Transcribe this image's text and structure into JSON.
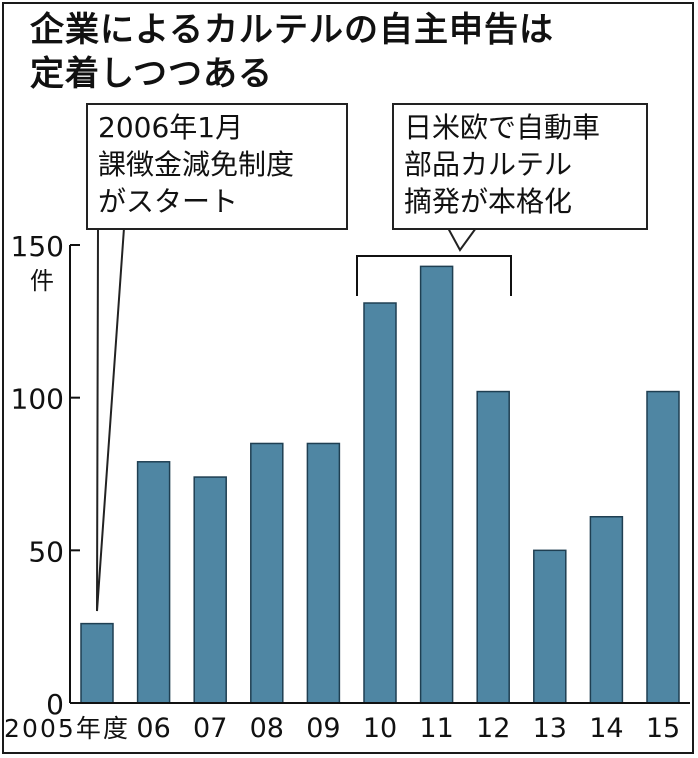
{
  "header": {
    "title_line1": "企業によるカルテルの自主申告は",
    "title_line2": "定着しつつある"
  },
  "annotations": {
    "callout1": "2006年1月\n課徴金減免制度\nがスタート",
    "callout2": "日米欧で自動車\n部品カルテル\n摘発が本格化"
  },
  "colors": {
    "bar_fill": "#4f86a3",
    "bar_stroke": "#1f3f52"
  },
  "chart_data": {
    "type": "bar",
    "categories": [
      "2005年度",
      "06",
      "07",
      "08",
      "09",
      "10",
      "11",
      "12",
      "13",
      "14",
      "15"
    ],
    "values": [
      26,
      79,
      74,
      85,
      85,
      131,
      143,
      102,
      50,
      61,
      102
    ],
    "ylim": [
      0,
      150
    ],
    "yticks": [
      0,
      50,
      100,
      150
    ],
    "yunit": "件",
    "title": "",
    "xlabel": "",
    "ylabel": "",
    "grid": false
  }
}
